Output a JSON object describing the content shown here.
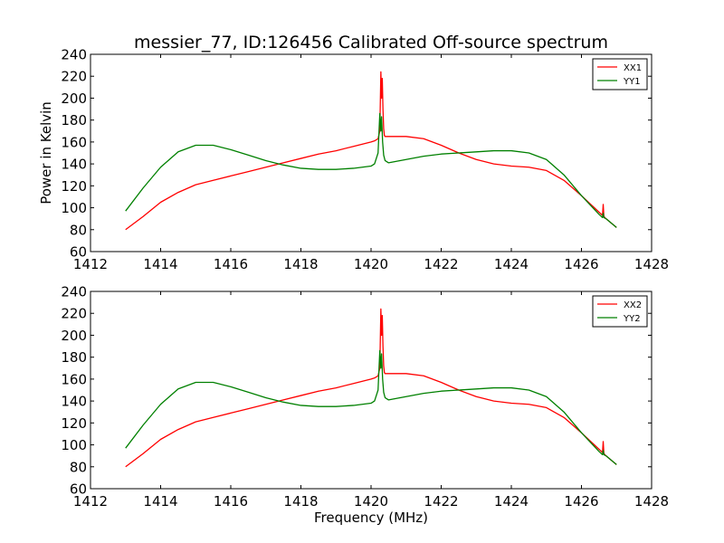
{
  "title": "messier_77, ID:126456 Calibrated Off-source spectrum",
  "colors": {
    "red": "#ff0000",
    "green": "#008000"
  },
  "chart_data": [
    {
      "type": "line",
      "xlabel": "",
      "ylabel": "Power in Kelvin",
      "xlim": [
        1412,
        1428
      ],
      "ylim": [
        60,
        240
      ],
      "xticks": [
        1412,
        1414,
        1416,
        1418,
        1420,
        1422,
        1424,
        1426,
        1428
      ],
      "yticks": [
        60,
        80,
        100,
        120,
        140,
        160,
        180,
        200,
        220,
        240
      ],
      "legend_position": "top-right",
      "series": [
        {
          "name": "XX1",
          "color": "#ff0000",
          "x": [
            1413.0,
            1413.5,
            1414.0,
            1414.5,
            1415.0,
            1415.5,
            1416.0,
            1416.5,
            1417.0,
            1417.5,
            1418.0,
            1418.5,
            1419.0,
            1419.5,
            1420.0,
            1420.1,
            1420.2,
            1420.25,
            1420.28,
            1420.3,
            1420.32,
            1420.34,
            1420.36,
            1420.38,
            1420.4,
            1420.5,
            1421.0,
            1421.5,
            1422.0,
            1422.5,
            1423.0,
            1423.5,
            1424.0,
            1424.5,
            1425.0,
            1425.5,
            1426.0,
            1426.5,
            1426.6,
            1426.62,
            1426.64,
            1426.7,
            1427.0
          ],
          "y": [
            80,
            92,
            105,
            114,
            121,
            125,
            129,
            133,
            137,
            141,
            145,
            149,
            152,
            156,
            160,
            161,
            163,
            170,
            224,
            200,
            218,
            190,
            172,
            166,
            165,
            165,
            165,
            163,
            157,
            150,
            144,
            140,
            138,
            137,
            134,
            125,
            111,
            96,
            93,
            103,
            92,
            90,
            82
          ]
        },
        {
          "name": "YY1",
          "color": "#008000",
          "x": [
            1413.0,
            1413.5,
            1414.0,
            1414.5,
            1415.0,
            1415.5,
            1416.0,
            1416.5,
            1417.0,
            1417.5,
            1418.0,
            1418.5,
            1419.0,
            1419.5,
            1420.0,
            1420.1,
            1420.2,
            1420.25,
            1420.28,
            1420.3,
            1420.33,
            1420.36,
            1420.4,
            1420.5,
            1421.0,
            1421.5,
            1422.0,
            1422.5,
            1423.0,
            1423.5,
            1424.0,
            1424.5,
            1425.0,
            1425.5,
            1426.0,
            1426.5,
            1426.6,
            1426.62,
            1426.64,
            1426.7,
            1427.0
          ],
          "y": [
            97,
            118,
            137,
            151,
            157,
            157,
            153,
            148,
            143,
            139,
            136,
            135,
            135,
            136,
            138,
            140,
            150,
            186,
            170,
            183,
            160,
            148,
            143,
            141,
            144,
            147,
            149,
            150,
            151,
            152,
            152,
            150,
            144,
            130,
            111,
            94,
            91,
            95,
            91,
            90,
            82
          ]
        }
      ]
    },
    {
      "type": "line",
      "xlabel": "Frequency (MHz)",
      "ylabel": "",
      "xlim": [
        1412,
        1428
      ],
      "ylim": [
        60,
        240
      ],
      "xticks": [
        1412,
        1414,
        1416,
        1418,
        1420,
        1422,
        1424,
        1426,
        1428
      ],
      "yticks": [
        60,
        80,
        100,
        120,
        140,
        160,
        180,
        200,
        220,
        240
      ],
      "legend_position": "top-right",
      "series": [
        {
          "name": "XX2",
          "color": "#ff0000",
          "x": [
            1413.0,
            1413.5,
            1414.0,
            1414.5,
            1415.0,
            1415.5,
            1416.0,
            1416.5,
            1417.0,
            1417.5,
            1418.0,
            1418.5,
            1419.0,
            1419.5,
            1420.0,
            1420.1,
            1420.2,
            1420.25,
            1420.28,
            1420.3,
            1420.32,
            1420.34,
            1420.36,
            1420.38,
            1420.4,
            1420.5,
            1421.0,
            1421.5,
            1422.0,
            1422.5,
            1423.0,
            1423.5,
            1424.0,
            1424.5,
            1425.0,
            1425.5,
            1426.0,
            1426.5,
            1426.6,
            1426.62,
            1426.64,
            1426.7,
            1427.0
          ],
          "y": [
            80,
            92,
            105,
            114,
            121,
            125,
            129,
            133,
            137,
            141,
            145,
            149,
            152,
            156,
            160,
            161,
            163,
            170,
            224,
            200,
            218,
            190,
            172,
            166,
            165,
            165,
            165,
            163,
            157,
            150,
            144,
            140,
            138,
            137,
            134,
            125,
            111,
            96,
            93,
            103,
            92,
            90,
            82
          ]
        },
        {
          "name": "YY2",
          "color": "#008000",
          "x": [
            1413.0,
            1413.5,
            1414.0,
            1414.5,
            1415.0,
            1415.5,
            1416.0,
            1416.5,
            1417.0,
            1417.5,
            1418.0,
            1418.5,
            1419.0,
            1419.5,
            1420.0,
            1420.1,
            1420.2,
            1420.25,
            1420.28,
            1420.3,
            1420.33,
            1420.36,
            1420.4,
            1420.5,
            1421.0,
            1421.5,
            1422.0,
            1422.5,
            1423.0,
            1423.5,
            1424.0,
            1424.5,
            1425.0,
            1425.5,
            1426.0,
            1426.5,
            1426.6,
            1426.62,
            1426.64,
            1426.7,
            1427.0
          ],
          "y": [
            97,
            118,
            137,
            151,
            157,
            157,
            153,
            148,
            143,
            139,
            136,
            135,
            135,
            136,
            138,
            140,
            150,
            186,
            170,
            183,
            160,
            148,
            143,
            141,
            144,
            147,
            149,
            150,
            151,
            152,
            152,
            150,
            144,
            130,
            111,
            94,
            91,
            95,
            91,
            90,
            82
          ]
        }
      ]
    }
  ]
}
